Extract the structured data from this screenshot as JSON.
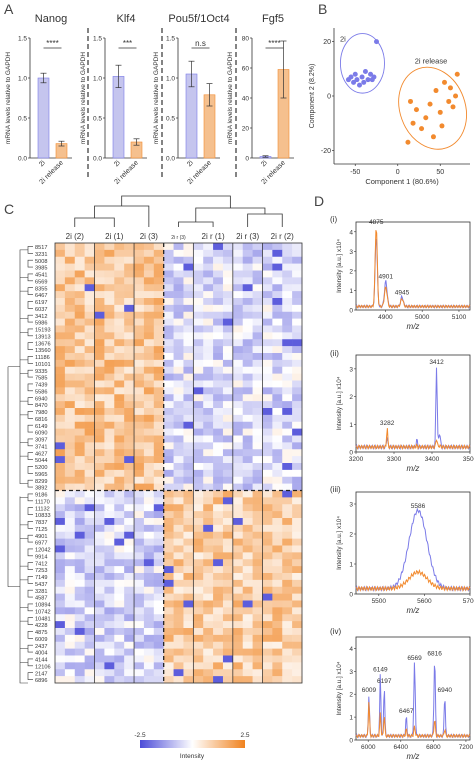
{
  "panels": {
    "A": "A",
    "B": "B",
    "C": "C",
    "D": "D"
  },
  "colors": {
    "blue": "#7b7be8",
    "orange": "#f28a2e",
    "blue_fill": "#c5c5ee",
    "orange_fill": "#f5c08e",
    "heat_low": "#4b4bd8",
    "heat_mid": "#ffffff",
    "heat_high": "#f0821e"
  },
  "chart_data": [
    {
      "id": "A-nanog",
      "type": "bar",
      "title": "Nanog",
      "ylabel": "mRNA levels relative to GAPDH",
      "categories": [
        "2i",
        "2i release"
      ],
      "values": [
        1.0,
        0.18
      ],
      "errors": [
        0.06,
        0.03
      ],
      "ylim": [
        0,
        1.5
      ],
      "yticks": [
        "0.0",
        "0.5",
        "1.0",
        "1.5"
      ],
      "significance": "****"
    },
    {
      "id": "A-klf4",
      "type": "bar",
      "title": "Klf4",
      "ylabel": "mRNA levels relative to GAPDH",
      "categories": [
        "2i",
        "2i release"
      ],
      "values": [
        1.02,
        0.2
      ],
      "errors": [
        0.14,
        0.04
      ],
      "ylim": [
        0,
        1.5
      ],
      "yticks": [
        "0.0",
        "0.5",
        "1.0",
        "1.5"
      ],
      "significance": "***"
    },
    {
      "id": "A-oct4",
      "type": "bar",
      "title": "Pou5f/1Oct4",
      "ylabel": "mRNA levels relative to GAPDH",
      "categories": [
        "2i",
        "2i release"
      ],
      "values": [
        1.05,
        0.79
      ],
      "errors": [
        0.16,
        0.14
      ],
      "ylim": [
        0,
        1.5
      ],
      "yticks": [
        "0.0",
        "0.5",
        "1.0",
        "1.5"
      ],
      "significance": "n.s"
    },
    {
      "id": "A-fgf5",
      "type": "bar",
      "title": "Fgf5",
      "ylabel": "mRNA levels relative to GAPDH",
      "categories": [
        "2i",
        "2i release"
      ],
      "values": [
        1,
        59
      ],
      "errors": [
        0.5,
        19
      ],
      "ylim": [
        0,
        80
      ],
      "yticks": [
        "0",
        "20",
        "40",
        "60",
        "80"
      ],
      "significance": "****"
    },
    {
      "id": "B-pca",
      "type": "scatter",
      "xlabel": "Component 1 (80.6%)",
      "ylabel": "Component 2 (8.2%)",
      "xlim": [
        -75,
        85
      ],
      "ylim": [
        -25,
        25
      ],
      "xticks": [
        "-50",
        "0",
        "50"
      ],
      "yticks": [
        "-20",
        "0",
        "20"
      ],
      "series": [
        {
          "name": "2i",
          "points": [
            [
              -58,
              6
            ],
            [
              -55,
              7
            ],
            [
              -52,
              5
            ],
            [
              -50,
              8
            ],
            [
              -48,
              6
            ],
            [
              -45,
              4
            ],
            [
              -42,
              7
            ],
            [
              -40,
              5
            ],
            [
              -38,
              9
            ],
            [
              -35,
              6
            ],
            [
              -32,
              8
            ],
            [
              -30,
              6
            ],
            [
              -28,
              7
            ],
            [
              -25,
              20
            ]
          ]
        },
        {
          "name": "2i release",
          "points": [
            [
              12,
              -17
            ],
            [
              15,
              -2
            ],
            [
              18,
              -10
            ],
            [
              22,
              -5
            ],
            [
              28,
              -12
            ],
            [
              33,
              -8
            ],
            [
              38,
              -3
            ],
            [
              42,
              -15
            ],
            [
              45,
              2
            ],
            [
              50,
              -6
            ],
            [
              52,
              -11
            ],
            [
              55,
              5
            ],
            [
              60,
              -2
            ],
            [
              62,
              3
            ],
            [
              65,
              -4
            ],
            [
              68,
              0
            ],
            [
              70,
              8
            ]
          ]
        }
      ]
    },
    {
      "id": "C-heatmap",
      "type": "heatmap",
      "group_labels": [
        "2i (2)",
        "2i (1)",
        "2i (3)",
        "2i r (3)",
        "2i r (1)",
        "2i r (3)",
        "2i r (2)"
      ],
      "row_labels": [
        "8517",
        "3231",
        "5008",
        "3985",
        "4541",
        "6569",
        "8355",
        "6467",
        "6197",
        "6037",
        "3412",
        "5986",
        "15193",
        "13913",
        "13676",
        "13560",
        "11186",
        "10101",
        "9335",
        "7585",
        "7439",
        "5586",
        "6940",
        "8470",
        "7980",
        "6816",
        "6149",
        "6090",
        "3097",
        "3741",
        "4627",
        "5044",
        "5200",
        "5965",
        "8299",
        "3892",
        "9186",
        "11170",
        "11132",
        "10833",
        "7837",
        "7125",
        "4901",
        "6977",
        "12042",
        "9914",
        "7412",
        "7253",
        "7149",
        "5437",
        "3281",
        "4587",
        "10894",
        "10742",
        "10481",
        "4228",
        "4875",
        "6009",
        "2437",
        "4004",
        "4144",
        "12106",
        "2147",
        "6896"
      ],
      "top_rows": 36,
      "colorbar": {
        "min": "-2.5",
        "max": "2.5",
        "label": "Intensity"
      }
    },
    {
      "id": "D-spectra",
      "type": "line",
      "xlabel": "m/z",
      "series_names": [
        "2i",
        "2i release"
      ],
      "subpanels": [
        {
          "label": "(i)",
          "ylabel": "Intensity [a.u.] x10⁴",
          "xlim": [
            4820,
            5130
          ],
          "xticks": [
            "4900",
            "5000",
            "5100"
          ],
          "yticks": [
            "0",
            "1",
            "2",
            "3",
            "4"
          ],
          "ymax": 4.5,
          "peaks": [
            {
              "x": 4875,
              "h_orange": 4.1,
              "h_blue": 3.6,
              "w": 4,
              "label": "4875"
            },
            {
              "x": 4901,
              "h_orange": 1.0,
              "h_blue": 1.3,
              "w": 5,
              "label": "4901"
            },
            {
              "x": 4945,
              "h_orange": 0.4,
              "h_blue": 0.5,
              "w": 5,
              "label": "4945"
            }
          ]
        },
        {
          "label": "(ii)",
          "ylabel": "Intensity [a.u.] x10⁴",
          "xlim": [
            3200,
            3500
          ],
          "xticks": [
            "3200",
            "3300",
            "3400",
            "3500"
          ],
          "yticks": [
            "0",
            "1",
            "2",
            "3"
          ],
          "ymax": 3.5,
          "peaks": [
            {
              "x": 3282,
              "h_orange": 0.7,
              "h_blue": 0.4,
              "w": 2,
              "label": "3282"
            },
            {
              "x": 3412,
              "h_orange": 0.3,
              "h_blue": 2.9,
              "w": 2.5,
              "label": "3412"
            },
            {
              "x": 3360,
              "h_orange": 0.05,
              "h_blue": 0.3,
              "w": 2,
              "label": ""
            },
            {
              "x": 3420,
              "h_orange": 0.05,
              "h_blue": 0.5,
              "w": 3,
              "label": ""
            }
          ]
        },
        {
          "label": "(iii)",
          "ylabel": "Intensity [a.u.] x10⁴",
          "xlim": [
            5450,
            5700
          ],
          "xticks": [
            "5500",
            "5600",
            "5700"
          ],
          "yticks": [
            "0",
            "1",
            "2",
            "3"
          ],
          "ymax": 3.4,
          "peaks": [
            {
              "x": 5586,
              "h_orange": 0.55,
              "h_blue": 2.6,
              "w": 28,
              "label": "5586"
            }
          ]
        },
        {
          "label": "(iv)",
          "ylabel": "Intensity [a.u.] x10⁴",
          "xlim": [
            5850,
            7250
          ],
          "xticks": [
            "6000",
            "6400",
            "6800",
            "7200"
          ],
          "yticks": [
            "0",
            "1",
            "2",
            "3",
            "4"
          ],
          "ymax": 4.5,
          "peaks": [
            {
              "x": 6009,
              "h_orange": 1.5,
              "h_blue": 1.8,
              "w": 10,
              "label": "6009"
            },
            {
              "x": 6149,
              "h_orange": 1.0,
              "h_blue": 2.7,
              "w": 10,
              "label": "6149"
            },
            {
              "x": 6197,
              "h_orange": 0.9,
              "h_blue": 2.2,
              "w": 10,
              "label": "6197"
            },
            {
              "x": 6467,
              "h_orange": 0.3,
              "h_blue": 0.9,
              "w": 10,
              "label": "6467"
            },
            {
              "x": 6569,
              "h_orange": 0.4,
              "h_blue": 3.2,
              "w": 12,
              "label": "6569"
            },
            {
              "x": 6816,
              "h_orange": 0.7,
              "h_blue": 3.4,
              "w": 12,
              "label": "6816"
            },
            {
              "x": 6940,
              "h_orange": 0.3,
              "h_blue": 1.8,
              "w": 10,
              "label": "6940"
            }
          ]
        }
      ]
    }
  ]
}
